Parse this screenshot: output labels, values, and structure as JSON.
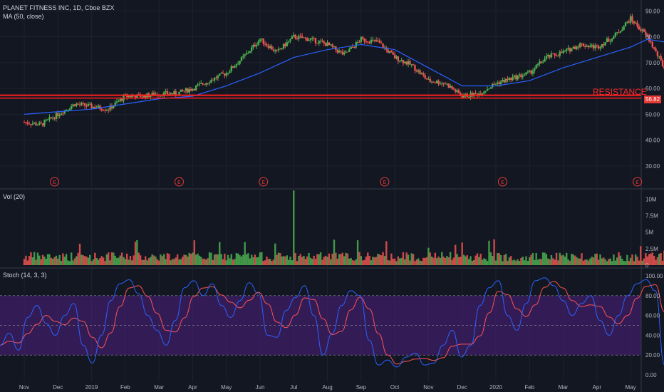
{
  "header": {
    "title": "PLANET FITNESS INC, 1D, Cboe BZX",
    "ma_label": "MA (50, close)",
    "vol_label": "Vol (20)",
    "stoch_label": "Stoch (14, 3, 3)"
  },
  "annotation": {
    "resistance_text": "RESISTANCE",
    "resistance_price": "56.82"
  },
  "colors": {
    "background": "#131722",
    "up": "#26a69a",
    "candle_up": "#4caf50",
    "candle_down": "#ef5350",
    "ma": "#2962ff",
    "resistance": "#ff1f1f",
    "stoch_k": "#2962ff",
    "stoch_d": "#ff5252",
    "stoch_band": "#4a1f7a",
    "earnings_marker": "#e53935"
  },
  "chart_data": [
    {
      "type": "line",
      "name": "price",
      "title": "PLANET FITNESS INC, 1D, Cboe BZX",
      "x": [
        "Nov",
        "Dec",
        "2019",
        "Feb",
        "Mar",
        "Apr",
        "May",
        "Jun",
        "Jul",
        "Aug",
        "Sep",
        "Oct",
        "Nov",
        "Dec",
        "2020",
        "Feb",
        "Mar",
        "Apr",
        "May"
      ],
      "y_ticks": [
        30,
        40,
        50,
        60,
        70,
        80,
        90
      ],
      "ylim": [
        22,
        92
      ],
      "price_path": [
        [
          0,
          47
        ],
        [
          0.5,
          46
        ],
        [
          1,
          50
        ],
        [
          1.5,
          54
        ],
        [
          2,
          53
        ],
        [
          2.5,
          52
        ],
        [
          3,
          57
        ],
        [
          3.5,
          57
        ],
        [
          4,
          58
        ],
        [
          4.5,
          58
        ],
        [
          5,
          60
        ],
        [
          5.5,
          63
        ],
        [
          6,
          66
        ],
        [
          6.5,
          72
        ],
        [
          7,
          79
        ],
        [
          7.5,
          74
        ],
        [
          8,
          80
        ],
        [
          8.5,
          79
        ],
        [
          9,
          77
        ],
        [
          9.5,
          73
        ],
        [
          10,
          79
        ],
        [
          10.5,
          78
        ],
        [
          11,
          72
        ],
        [
          11.5,
          69
        ],
        [
          12,
          63
        ],
        [
          12.5,
          62
        ],
        [
          13,
          57
        ],
        [
          13.5,
          58
        ],
        [
          14,
          62
        ],
        [
          14.5,
          64
        ],
        [
          15,
          66
        ],
        [
          15.5,
          72
        ],
        [
          16,
          74
        ],
        [
          16.5,
          77
        ],
        [
          17,
          76
        ],
        [
          17.5,
          80
        ],
        [
          18,
          87
        ],
        [
          18.5,
          80
        ],
        [
          19,
          68
        ],
        [
          19.5,
          52
        ],
        [
          20,
          30
        ],
        [
          20.3,
          45
        ],
        [
          20.6,
          38
        ],
        [
          20.9,
          55
        ],
        [
          21.2,
          57
        ]
      ],
      "ma_path": [
        [
          0,
          50
        ],
        [
          1,
          51
        ],
        [
          2,
          52
        ],
        [
          3,
          54
        ],
        [
          4,
          56
        ],
        [
          5,
          57
        ],
        [
          6,
          61
        ],
        [
          7,
          66
        ],
        [
          8,
          72
        ],
        [
          9,
          75
        ],
        [
          10,
          77
        ],
        [
          11,
          75
        ],
        [
          12,
          68
        ],
        [
          13,
          61
        ],
        [
          14,
          61
        ],
        [
          15,
          63
        ],
        [
          16,
          68
        ],
        [
          17,
          72
        ],
        [
          18,
          76
        ],
        [
          18.5,
          79
        ],
        [
          19,
          78
        ],
        [
          19.7,
          72
        ],
        [
          20.5,
          64
        ],
        [
          21.2,
          61
        ]
      ],
      "resistance_level": 56.82,
      "earnings_markers": [
        "E",
        "E",
        "E",
        "E",
        "E",
        "E",
        "E"
      ],
      "earnings_positions": [
        0.9,
        4.6,
        7.1,
        10.7,
        14.2,
        18.2,
        21.3
      ]
    },
    {
      "type": "bar",
      "name": "volume",
      "title": "Vol (20)",
      "y_ticks": [
        "0",
        "2.5M",
        "5M",
        "7.5M",
        "10M"
      ],
      "ylim": [
        0,
        11
      ],
      "notable_spike": {
        "month": "Jul",
        "value": 11.3
      }
    },
    {
      "type": "line",
      "name": "stochastic",
      "title": "Stoch (14, 3, 3)",
      "y_ticks": [
        "0.00",
        "20.00",
        "40.00",
        "60.00",
        "80.00",
        "100.00"
      ],
      "ylim": [
        -5,
        105
      ],
      "band": [
        20,
        80
      ],
      "k_values": [
        30,
        42,
        25,
        58,
        70,
        52,
        40,
        60,
        72,
        30,
        12,
        40,
        75,
        92,
        96,
        82,
        60,
        45,
        30,
        55,
        88,
        95,
        80,
        92,
        70,
        58,
        75,
        93,
        82,
        40,
        38,
        65,
        78,
        90,
        60,
        20,
        42,
        70,
        85,
        80,
        35,
        10,
        15,
        8,
        18,
        22,
        10,
        12,
        30,
        45,
        18,
        30,
        70,
        88,
        95,
        60,
        45,
        72,
        95,
        98,
        90,
        75,
        60,
        72,
        80,
        55,
        40,
        60,
        80,
        92,
        96,
        85,
        10,
        14,
        12,
        15,
        18,
        38,
        62,
        55,
        90
      ]
    }
  ],
  "x_labels": [
    "Nov",
    "Dec",
    "2019",
    "Feb",
    "Mar",
    "Apr",
    "May",
    "Jun",
    "Jul",
    "Aug",
    "Sep",
    "Oct",
    "Nov",
    "Dec",
    "2020",
    "Feb",
    "Mar",
    "Apr",
    "May"
  ],
  "price_axis": [
    "90.00",
    "80.00",
    "70.00",
    "60.00",
    "50.00",
    "40.00",
    "30.00"
  ]
}
